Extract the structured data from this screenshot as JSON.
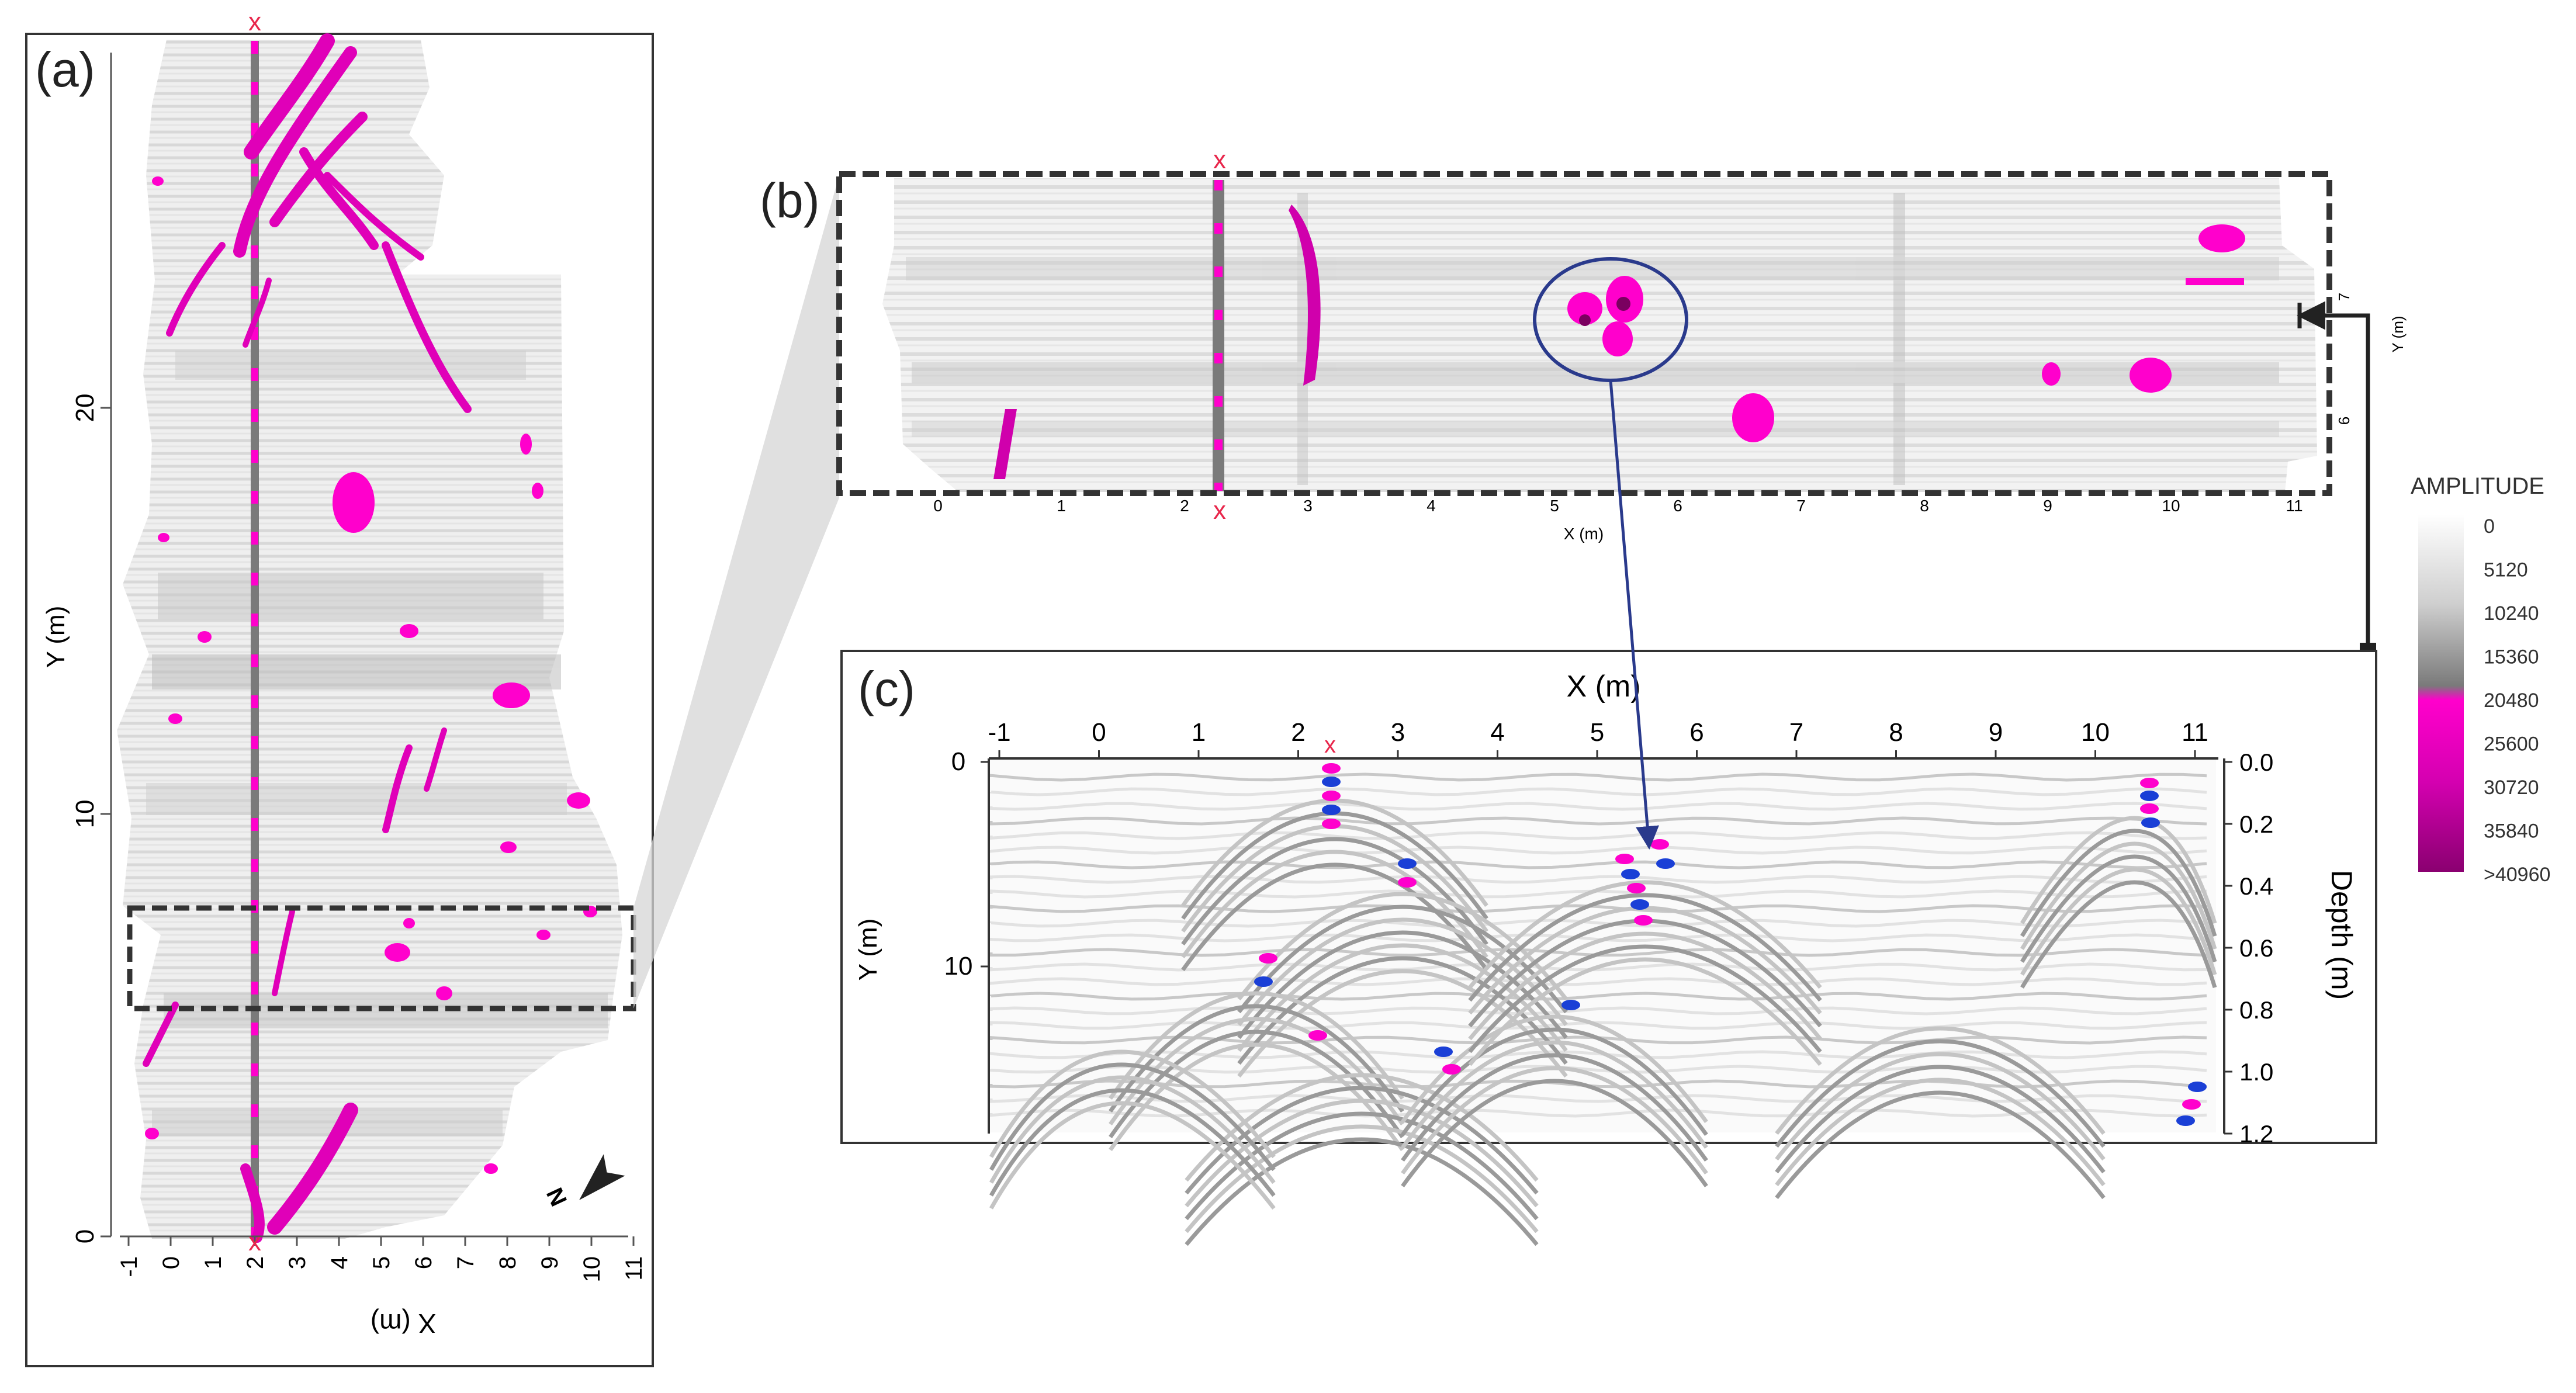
{
  "panel_a": {
    "label": "(a)",
    "xlabel": "X (m)",
    "ylabel": "Y (m)",
    "x_ticks": [
      "-1",
      "0",
      "1",
      "2",
      "3",
      "4",
      "5",
      "6",
      "7",
      "8",
      "9",
      "10",
      "11"
    ],
    "y_ticks": [
      "0",
      "10",
      "20"
    ],
    "line_marker": "x",
    "north_label": "N"
  },
  "panel_b": {
    "label": "(b)",
    "xlabel": "X (m)",
    "ylabel": "Y (m)",
    "x_ticks": [
      "0",
      "1",
      "2",
      "3",
      "4",
      "5",
      "6",
      "7",
      "8",
      "9",
      "10",
      "11"
    ],
    "y_ticks": [
      "6",
      "7"
    ],
    "line_marker": "x"
  },
  "panel_c": {
    "label": "(c)",
    "xlabel": "X (m)",
    "ylabel": "Y (m)",
    "right_label": "Depth (m)",
    "x_ticks": [
      "-1",
      "0",
      "1",
      "2",
      "3",
      "4",
      "5",
      "6",
      "7",
      "8",
      "9",
      "10",
      "11"
    ],
    "y_ticks": [
      "0",
      "10"
    ],
    "depth_ticks": [
      "0.0",
      "0.2",
      "0.4",
      "0.6",
      "0.8",
      "1.0",
      "1.2"
    ],
    "line_marker": "x"
  },
  "colorbar": {
    "title": "AMPLITUDE",
    "labels": [
      "0",
      "5120",
      "10240",
      "15360",
      "20480",
      "25600",
      "30720",
      "35840",
      ">40960"
    ],
    "colors": [
      "#ffffff",
      "#cfcfcf",
      "#9a9a9a",
      "#7a7a7a",
      "#ff00cc",
      "#ff33dd",
      "#d400b0",
      "#b0008f",
      "#8a0070"
    ]
  },
  "colors": {
    "magenta": "#ff00cc",
    "dark_magenta": "#b3008f",
    "marker_red": "#e8264b",
    "ellipse": "#2a3a8c",
    "arrow": "#2a3a8c",
    "blue_reflection": "#1a3fd6"
  }
}
